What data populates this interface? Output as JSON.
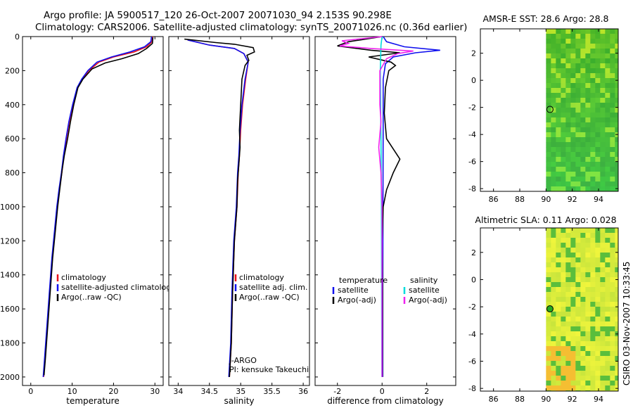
{
  "header": {
    "line1": "Argo profile: JA 5900517_120 26-Oct-2007 20071030_94 2.153S 90.298E",
    "line2": "Climatology: CARS2006. Satellite-adjusted climatology: synTS_20071026.nc (0.36d earlier)"
  },
  "credit": "CSIRO 03-Nov-2007 10:33:45",
  "colors": {
    "red": "#e8111a",
    "blue": "#1010ee",
    "black": "#000000",
    "cyan": "#00dddd",
    "magenta": "#ee22ee"
  },
  "chart_data": [
    {
      "type": "line",
      "id": "temperature",
      "xlabel": "temperature",
      "xlim": [
        -2,
        32
      ],
      "ylim": [
        2050,
        0
      ],
      "xticks": [
        0,
        10,
        20,
        30
      ],
      "yticks": [
        0,
        200,
        400,
        600,
        800,
        1000,
        1200,
        1400,
        1600,
        1800,
        2000
      ],
      "legend": [
        "climatology",
        "satellite-adjusted climatology",
        "Argo(..raw -QC)"
      ],
      "series": [
        {
          "name": "climatology",
          "color": "red",
          "points": [
            [
              29.5,
              0
            ],
            [
              29.3,
              30
            ],
            [
              28,
              60
            ],
            [
              25,
              90
            ],
            [
              20,
              120
            ],
            [
              16.5,
              150
            ],
            [
              14,
              200
            ],
            [
              12.5,
              250
            ],
            [
              11.3,
              300
            ],
            [
              10.2,
              400
            ],
            [
              9.3,
              500
            ],
            [
              8.6,
              600
            ],
            [
              8,
              700
            ],
            [
              7.5,
              800
            ],
            [
              6.9,
              900
            ],
            [
              6.4,
              1000
            ],
            [
              5.8,
              1150
            ],
            [
              5.2,
              1300
            ],
            [
              4.6,
              1500
            ],
            [
              4,
              1700
            ],
            [
              3.4,
              1900
            ],
            [
              3.1,
              2000
            ]
          ]
        },
        {
          "name": "satellite-adjusted climatology",
          "color": "blue",
          "points": [
            [
              29.2,
              0
            ],
            [
              29,
              30
            ],
            [
              27.5,
              60
            ],
            [
              24,
              90
            ],
            [
              19.5,
              120
            ],
            [
              16,
              150
            ],
            [
              13.8,
              200
            ],
            [
              12.3,
              250
            ],
            [
              11.2,
              300
            ],
            [
              10.1,
              400
            ],
            [
              9.2,
              500
            ],
            [
              8.5,
              600
            ],
            [
              7.9,
              700
            ],
            [
              7.4,
              800
            ],
            [
              6.8,
              900
            ],
            [
              6.3,
              1000
            ],
            [
              5.7,
              1150
            ],
            [
              5.1,
              1300
            ],
            [
              4.5,
              1500
            ],
            [
              3.9,
              1700
            ],
            [
              3.3,
              1900
            ],
            [
              3,
              2000
            ]
          ]
        },
        {
          "name": "Argo(..raw -QC)",
          "color": "black",
          "points": [
            [
              29.5,
              5
            ],
            [
              29.4,
              40
            ],
            [
              28,
              70
            ],
            [
              26,
              100
            ],
            [
              22,
              130
            ],
            [
              18,
              155
            ],
            [
              14.8,
              190
            ],
            [
              12.6,
              250
            ],
            [
              11.4,
              300
            ],
            [
              10.4,
              400
            ],
            [
              9.6,
              500
            ],
            [
              8.9,
              600
            ],
            [
              8.1,
              700
            ],
            [
              7.6,
              780
            ],
            [
              7,
              900
            ],
            [
              6.5,
              1000
            ],
            [
              5.9,
              1150
            ],
            [
              5.3,
              1300
            ],
            [
              4.7,
              1500
            ],
            [
              4.1,
              1700
            ],
            [
              3.5,
              1900
            ],
            [
              3.2,
              1990
            ]
          ]
        }
      ]
    },
    {
      "type": "line",
      "id": "salinity",
      "xlabel": "salinity",
      "xlim": [
        33.85,
        36.1
      ],
      "ylim": [
        2050,
        0
      ],
      "xticks": [
        34,
        34.5,
        35,
        35.5,
        36
      ],
      "legend": [
        "climatology",
        "satellite adj. clim.",
        "Argo(..raw -QC)"
      ],
      "annotations": [
        "J-ARGO",
        "PI: kensuke Takeuchi"
      ],
      "series": [
        {
          "name": "climatology",
          "color": "red",
          "points": [
            [
              34.15,
              20
            ],
            [
              34.5,
              50
            ],
            [
              34.9,
              70
            ],
            [
              35.05,
              100
            ],
            [
              35.12,
              150
            ],
            [
              35.08,
              250
            ],
            [
              35.03,
              400
            ],
            [
              35.0,
              550
            ],
            [
              34.98,
              700
            ],
            [
              34.96,
              800
            ],
            [
              34.94,
              1000
            ],
            [
              34.9,
              1200
            ],
            [
              34.87,
              1500
            ],
            [
              34.85,
              1800
            ],
            [
              34.82,
              2000
            ]
          ]
        },
        {
          "name": "satellite adj. clim.",
          "color": "blue",
          "points": [
            [
              34.15,
              20
            ],
            [
              34.5,
              50
            ],
            [
              34.9,
              70
            ],
            [
              35.05,
              100
            ],
            [
              35.12,
              150
            ],
            [
              35.07,
              250
            ],
            [
              35.02,
              400
            ],
            [
              34.99,
              550
            ],
            [
              34.97,
              700
            ],
            [
              34.95,
              800
            ],
            [
              34.93,
              1000
            ],
            [
              34.89,
              1200
            ],
            [
              34.86,
              1500
            ],
            [
              34.84,
              1800
            ],
            [
              34.81,
              2000
            ]
          ]
        },
        {
          "name": "Argo(..raw -QC)",
          "color": "black",
          "points": [
            [
              34.1,
              15
            ],
            [
              34.6,
              35
            ],
            [
              34.9,
              45
            ],
            [
              35.2,
              65
            ],
            [
              35.22,
              90
            ],
            [
              35.1,
              110
            ],
            [
              35.13,
              140
            ],
            [
              35.07,
              170
            ],
            [
              35.02,
              250
            ],
            [
              35.0,
              400
            ],
            [
              34.98,
              550
            ],
            [
              34.99,
              650
            ],
            [
              34.97,
              750
            ],
            [
              34.95,
              850
            ],
            [
              34.94,
              1000
            ],
            [
              34.9,
              1200
            ],
            [
              34.87,
              1500
            ],
            [
              34.85,
              1800
            ],
            [
              34.82,
              2000
            ]
          ]
        }
      ]
    },
    {
      "type": "line",
      "id": "difference",
      "xlabel": "difference from climatology",
      "xlim": [
        -3,
        3.3
      ],
      "ylim": [
        2050,
        0
      ],
      "xticks": [
        -2,
        0,
        2
      ],
      "legend_temperature": {
        "title": "temperature",
        "items": [
          "satellite",
          "Argo(-adj)"
        ]
      },
      "legend_salinity": {
        "title": "salinity",
        "items": [
          "satellite",
          "Argo(-adj)"
        ]
      },
      "series": [
        {
          "name": "temperature satellite",
          "color": "blue",
          "points": [
            [
              0.05,
              0
            ],
            [
              0.2,
              30
            ],
            [
              1,
              60
            ],
            [
              2.6,
              80
            ],
            [
              1.5,
              95
            ],
            [
              0.5,
              120
            ],
            [
              0.15,
              160
            ],
            [
              0.05,
              250
            ],
            [
              0.05,
              500
            ],
            [
              0.04,
              1000
            ],
            [
              0.03,
              1500
            ],
            [
              0.03,
              2000
            ]
          ]
        },
        {
          "name": "temperature Argo(-adj)",
          "color": "black",
          "points": [
            [
              0,
              0
            ],
            [
              -1.5,
              30
            ],
            [
              -2,
              55
            ],
            [
              -0.5,
              80
            ],
            [
              0.8,
              95
            ],
            [
              -0.6,
              120
            ],
            [
              0.4,
              150
            ],
            [
              0.6,
              170
            ],
            [
              0.3,
              200
            ],
            [
              0.15,
              300
            ],
            [
              0.1,
              450
            ],
            [
              0.2,
              600
            ],
            [
              0.5,
              660
            ],
            [
              0.8,
              720
            ],
            [
              0.5,
              800
            ],
            [
              0.2,
              900
            ],
            [
              0.05,
              1000
            ],
            [
              0.0,
              1200
            ],
            [
              0.02,
              1500
            ],
            [
              0.01,
              2000
            ]
          ]
        },
        {
          "name": "salinity satellite",
          "color": "cyan",
          "points": [
            [
              0,
              0
            ],
            [
              -0.05,
              50
            ],
            [
              -0.08,
              200
            ],
            [
              -0.05,
              600
            ],
            [
              -0.03,
              1000
            ],
            [
              -0.02,
              1500
            ],
            [
              -0.01,
              2000
            ]
          ]
        },
        {
          "name": "salinity Argo(-adj)",
          "color": "magenta",
          "points": [
            [
              0,
              0
            ],
            [
              -1.8,
              25
            ],
            [
              -1.5,
              40
            ],
            [
              -1.9,
              55
            ],
            [
              -0.5,
              70
            ],
            [
              1.4,
              85
            ],
            [
              0.7,
              100
            ],
            [
              0.2,
              130
            ],
            [
              -0.1,
              200
            ],
            [
              -0.1,
              400
            ],
            [
              -0.05,
              500
            ],
            [
              -0.15,
              650
            ],
            [
              -0.05,
              800
            ],
            [
              0.0,
              1000
            ],
            [
              0.0,
              1500
            ],
            [
              0.0,
              2000
            ]
          ]
        }
      ]
    },
    {
      "type": "heatmap",
      "id": "sst",
      "title": "AMSR-E SST: 28.6  Argo: 28.8",
      "xlim": [
        85,
        95.5
      ],
      "ylim": [
        -8.2,
        3.8
      ],
      "xticks": [
        86,
        88,
        90,
        92,
        94
      ],
      "yticks": [
        -8,
        -6,
        -4,
        -2,
        0,
        2
      ],
      "data_x_start": 90,
      "marker": [
        90.3,
        -2.15
      ],
      "palette": "green"
    },
    {
      "type": "heatmap",
      "id": "sla",
      "title": "Altimetric SLA: 0.11  Argo: 0.028",
      "xlim": [
        85,
        95.5
      ],
      "ylim": [
        -8.2,
        3.8
      ],
      "xticks": [
        86,
        88,
        90,
        92,
        94
      ],
      "yticks": [
        -8,
        -6,
        -4,
        -2,
        0,
        2
      ],
      "data_x_start": 90,
      "marker": [
        90.3,
        -2.15
      ],
      "palette": "yellow-green"
    }
  ]
}
